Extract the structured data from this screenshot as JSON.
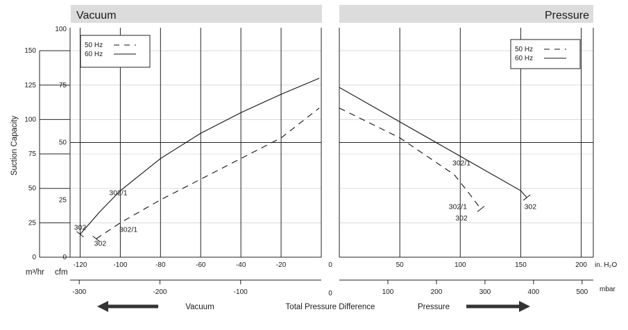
{
  "chart_data": {
    "type": "line",
    "ylabel": "Suction Capacity",
    "y_unit_outer": "m³/hr",
    "y_unit_inner": "cfm",
    "y_ticks_m3hr": [
      "150",
      "125",
      "100",
      "75",
      "50",
      "25",
      "0"
    ],
    "y_ticks_cfm": [
      "100",
      "75",
      "50",
      "25",
      "0"
    ],
    "ylim_cfm": [
      0,
      100
    ],
    "center_label": "Total Pressure Difference",
    "arrow_left_label": "Vacuum",
    "arrow_right_label": "Pressure",
    "zero_label_top": "0",
    "zero_label_bottom": "0",
    "panels": [
      {
        "header": "Vacuum",
        "x_unit_primary": "",
        "x_unit_secondary": "",
        "x_ticks_primary": [
          "-120",
          "-100",
          "-80",
          "-60",
          "-40",
          "-20"
        ],
        "x_ticks_secondary": [
          "-300",
          "-200",
          "-100"
        ],
        "xlim_in_h2o": [
          -125,
          0
        ],
        "legend": [
          {
            "label": "50 Hz",
            "style": "dashed"
          },
          {
            "label": "60 Hz",
            "style": "solid"
          }
        ],
        "series": [
          {
            "freq": "60 Hz",
            "style": "solid",
            "x": [
              -120,
              -110,
              -100,
              -80,
              -60,
              -40,
              -20,
              -1
            ],
            "y": [
              10,
              20,
              29,
              43,
              54,
              63,
              71,
              78
            ]
          },
          {
            "freq": "50 Hz",
            "style": "dashed",
            "x": [
              -112,
              -100,
              -80,
              -60,
              -40,
              -20,
              -1
            ],
            "y": [
              8,
              15,
              25,
              34,
              43,
              52,
              65
            ]
          }
        ],
        "labels": [
          {
            "text": "302",
            "x": -120,
            "y": 12
          },
          {
            "text": "302/1",
            "x": -101,
            "y": 27
          },
          {
            "text": "302",
            "x": -110,
            "y": 5
          },
          {
            "text": "302/1",
            "x": -96,
            "y": 11
          }
        ]
      },
      {
        "header": "Pressure",
        "x_unit_primary": "in. H₂O",
        "x_unit_secondary": "mbar",
        "x_ticks_primary": [
          "50",
          "100",
          "150",
          "200"
        ],
        "x_ticks_secondary": [
          "100",
          "200",
          "300",
          "400",
          "500"
        ],
        "xlim_in_h2o": [
          0,
          210
        ],
        "legend": [
          {
            "label": "50 Hz",
            "style": "dashed"
          },
          {
            "label": "60 Hz",
            "style": "solid"
          }
        ],
        "series": [
          {
            "freq": "60 Hz",
            "style": "solid",
            "x": [
              0,
              50,
              100,
              150,
              155
            ],
            "y": [
              74,
              59,
              44,
              29,
              26
            ]
          },
          {
            "freq": "50 Hz",
            "style": "dashed",
            "x": [
              0,
              50,
              95,
              110,
              117
            ],
            "y": [
              65,
              52,
              36,
              26,
              21
            ]
          }
        ],
        "labels": [
          {
            "text": "302/1",
            "x": 101,
            "y": 40
          },
          {
            "text": "302",
            "x": 158,
            "y": 21
          },
          {
            "text": "302/1",
            "x": 98,
            "y": 21
          },
          {
            "text": "302",
            "x": 101,
            "y": 16
          }
        ]
      }
    ]
  }
}
